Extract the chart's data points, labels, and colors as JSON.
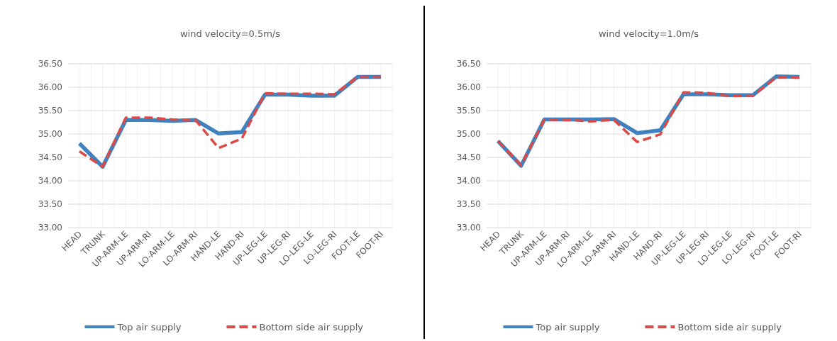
{
  "chart_data": [
    {
      "type": "line",
      "title": "wind velocity=0.5m/s",
      "categories": [
        "HEAD",
        "TRUNK",
        "UP-ARM-LE",
        "UP-ARM-RI",
        "LO-ARM-LE",
        "LO-ARM-RI",
        "HAND-LE",
        "HAND-RI",
        "UP-LEG-LE",
        "UP-LEG-RI",
        "LO-LEG-LE",
        "LO-LEG-RI",
        "FOOT-LE",
        "FOOT-RI"
      ],
      "series": [
        {
          "name": "Top air supply",
          "color": "#3e82c0",
          "line_style": "solid",
          "values": [
            34.8,
            34.3,
            35.3,
            35.3,
            35.28,
            35.3,
            35.01,
            35.04,
            35.84,
            35.84,
            35.82,
            35.82,
            36.22,
            36.22
          ]
        },
        {
          "name": "Bottom side air supply",
          "color": "#dc4a48",
          "line_style": "dashed",
          "values": [
            34.63,
            34.3,
            35.35,
            35.35,
            35.31,
            35.3,
            34.7,
            34.9,
            35.87,
            35.86,
            35.86,
            35.85,
            36.22,
            36.22
          ]
        }
      ],
      "ylim": [
        33,
        36.5
      ],
      "yticks": [
        {
          "value": 33,
          "label": "33.00"
        },
        {
          "value": 33.5,
          "label": "33.50"
        },
        {
          "value": 34,
          "label": "34.00"
        },
        {
          "value": 34.5,
          "label": "34.50"
        },
        {
          "value": 35,
          "label": "35.00"
        },
        {
          "value": 35.5,
          "label": "35.50"
        },
        {
          "value": 36,
          "label": "36.00"
        },
        {
          "value": 36.5,
          "label": "36.50"
        }
      ],
      "grid": true,
      "legend": "bottom"
    },
    {
      "type": "line",
      "title": "wind velocity=1.0m/s",
      "categories": [
        "HEAD",
        "TRUNK",
        "UP-ARM-LE",
        "UP-ARM-RI",
        "LO-ARM-LE",
        "LO-ARM-RI",
        "HAND-LE",
        "HAND-RI",
        "UP-LEG-LE",
        "UP-LEG-RI",
        "LO-LEG-LE",
        "LO-LEG-RI",
        "FOOT-LE",
        "FOOT-RI"
      ],
      "series": [
        {
          "name": "Top air supply",
          "color": "#3e82c0",
          "line_style": "solid",
          "values": [
            34.85,
            34.32,
            35.31,
            35.31,
            35.31,
            35.32,
            35.02,
            35.08,
            35.85,
            35.85,
            35.83,
            35.83,
            36.23,
            36.22
          ]
        },
        {
          "name": "Bottom side air supply",
          "color": "#dc4a48",
          "line_style": "dashed",
          "values": [
            34.85,
            34.33,
            35.31,
            35.3,
            35.27,
            35.3,
            34.83,
            34.99,
            35.89,
            35.88,
            35.81,
            35.82,
            36.21,
            36.21
          ]
        }
      ],
      "ylim": [
        33,
        36.5
      ],
      "yticks": [
        {
          "value": 33,
          "label": "33.00"
        },
        {
          "value": 33.5,
          "label": "33.50"
        },
        {
          "value": 34,
          "label": "34.00"
        },
        {
          "value": 34.5,
          "label": "34.50"
        },
        {
          "value": 35,
          "label": "35.00"
        },
        {
          "value": 35.5,
          "label": "35.50"
        },
        {
          "value": 36,
          "label": "36.00"
        },
        {
          "value": 36.5,
          "label": "36.50"
        }
      ],
      "grid": true,
      "legend": "bottom"
    }
  ]
}
